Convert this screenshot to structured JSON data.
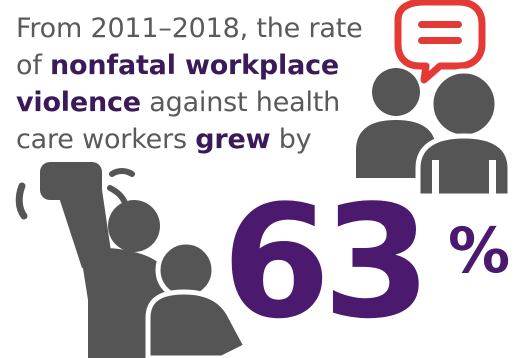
{
  "headline": {
    "line1": "From 2011–2018, the rate",
    "line2_prefix": "of ",
    "line2_bold": "nonfatal workplace",
    "line3_bold": "violence",
    "line3_suffix": " against health",
    "line4_prefix": "care workers ",
    "line4_bold": "grew",
    "line4_suffix": " by"
  },
  "stat": {
    "value": "63",
    "unit": "%"
  },
  "colors": {
    "text": "#5a5a5a",
    "accent": "#4b1a6e",
    "icon": "#555555",
    "alert": "#e53935"
  },
  "icons": [
    "chat-alert-icon",
    "two-people-icon",
    "angry-fist-person-icon",
    "cowering-person-icon"
  ]
}
